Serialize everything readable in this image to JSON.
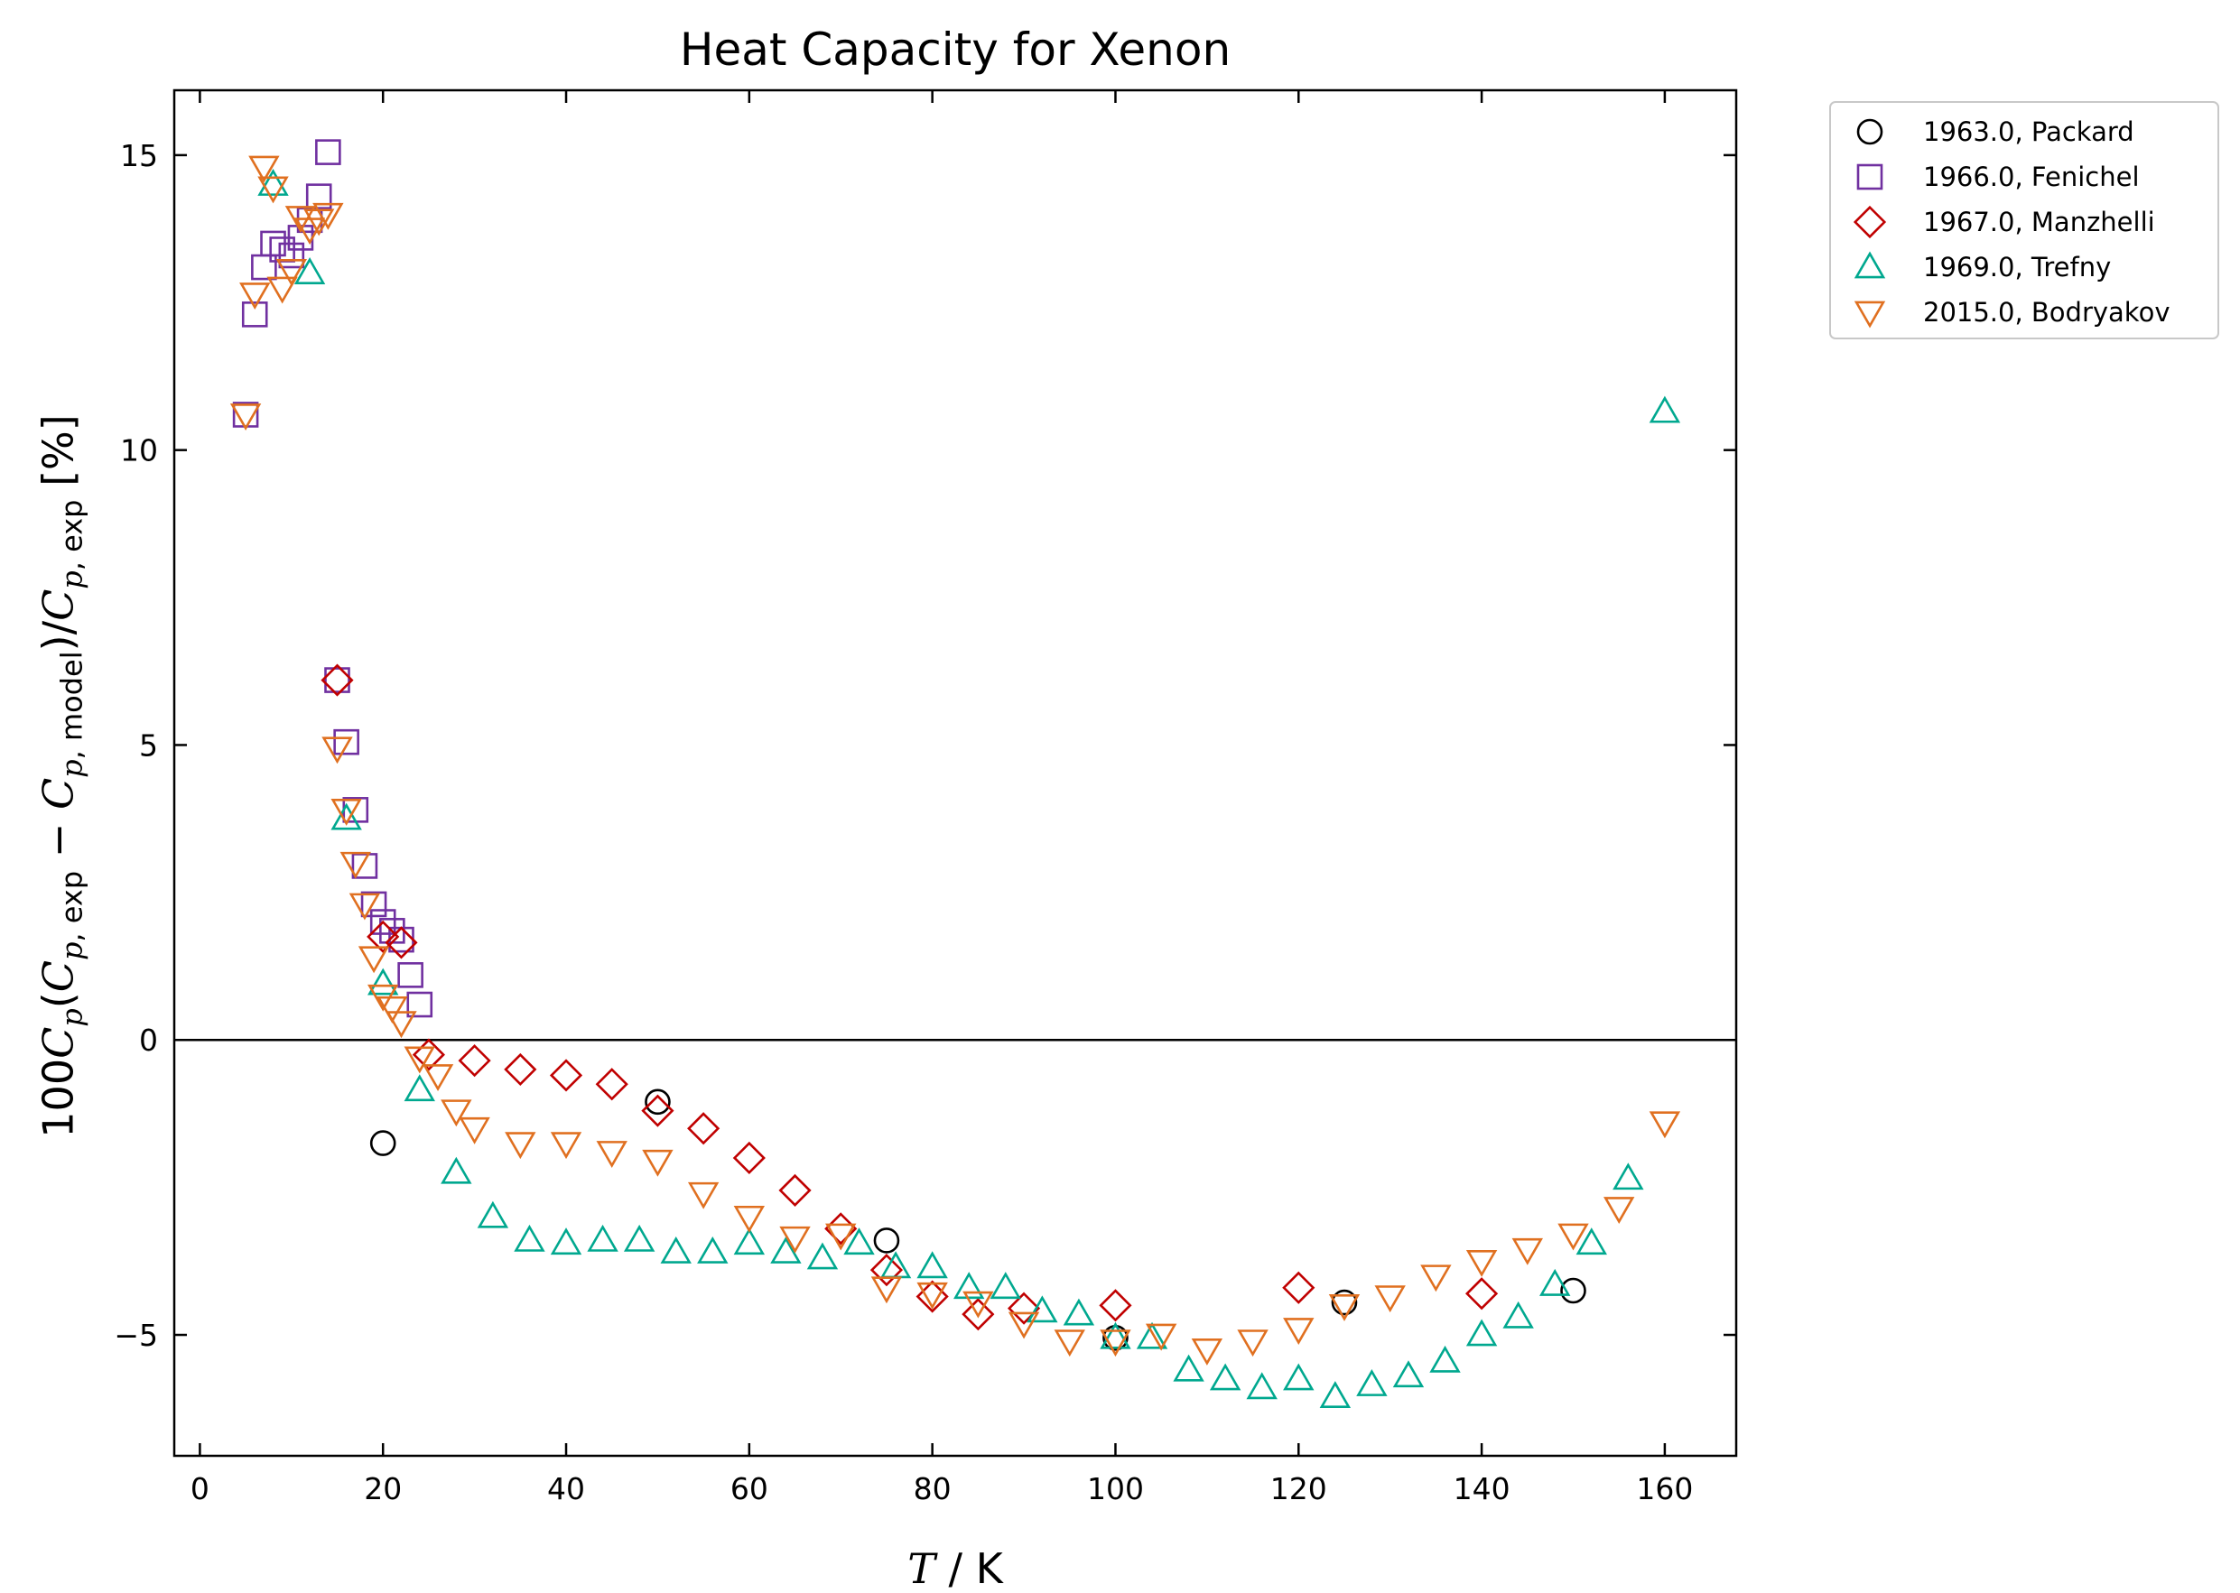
{
  "chart_data": {
    "type": "scatter",
    "title": "Heat Capacity for Xenon",
    "xlabel": "T / K",
    "ylabel": "100Cp(Cp,exp − Cp,model)/Cp,exp [%]",
    "xlim": [
      -2.8,
      167.8
    ],
    "ylim": [
      -7.05,
      16.1
    ],
    "xticks": [
      0,
      20,
      40,
      60,
      80,
      100,
      120,
      140,
      160
    ],
    "yticks": [
      -5,
      0,
      5,
      10,
      15
    ],
    "zero_line": true,
    "grid": false,
    "legend_position": "outside-top-right",
    "series": [
      {
        "name": "1963.0, Packard",
        "marker": "circle",
        "color": "#000000",
        "x": [
          20,
          50,
          75,
          100,
          125,
          150
        ],
        "y": [
          -1.75,
          -1.05,
          -3.4,
          -5.05,
          -4.45,
          -4.25
        ]
      },
      {
        "name": "1966.0, Fenichel",
        "marker": "square",
        "color": "#7030a0",
        "x": [
          5,
          6,
          7,
          8,
          9,
          10,
          11,
          12,
          13,
          14,
          15,
          16,
          17,
          18,
          19,
          20,
          21,
          22,
          23,
          24
        ],
        "y": [
          10.6,
          12.3,
          13.1,
          13.5,
          13.4,
          13.3,
          13.6,
          13.9,
          14.3,
          15.05,
          6.1,
          5.05,
          3.9,
          2.95,
          2.3,
          2.0,
          1.85,
          1.7,
          1.1,
          0.6
        ]
      },
      {
        "name": "1967.0, Manzhelli",
        "marker": "diamond",
        "color": "#c00000",
        "x": [
          15,
          20,
          22,
          25,
          30,
          35,
          40,
          45,
          50,
          55,
          60,
          65,
          70,
          75,
          80,
          85,
          90,
          100,
          120,
          140
        ],
        "y": [
          6.1,
          1.75,
          1.65,
          -0.25,
          -0.35,
          -0.5,
          -0.6,
          -0.75,
          -1.2,
          -1.5,
          -2.0,
          -2.55,
          -3.2,
          -3.9,
          -4.35,
          -4.65,
          -4.55,
          -4.5,
          -4.2,
          -4.3
        ]
      },
      {
        "name": "1969.0, Trefny",
        "marker": "triangle-up",
        "color": "#00a88f",
        "x": [
          8,
          12,
          16,
          20,
          24,
          28,
          32,
          36,
          40,
          44,
          48,
          52,
          56,
          60,
          64,
          68,
          72,
          76,
          80,
          84,
          88,
          92,
          96,
          100,
          104,
          108,
          112,
          116,
          120,
          124,
          128,
          132,
          136,
          140,
          144,
          148,
          152,
          156,
          160
        ],
        "y": [
          14.5,
          13.0,
          3.75,
          0.95,
          -0.85,
          -2.25,
          -3.0,
          -3.4,
          -3.45,
          -3.4,
          -3.4,
          -3.6,
          -3.6,
          -3.45,
          -3.6,
          -3.7,
          -3.45,
          -3.85,
          -3.85,
          -4.2,
          -4.2,
          -4.6,
          -4.65,
          -5.05,
          -5.05,
          -5.6,
          -5.75,
          -5.9,
          -5.75,
          -6.05,
          -5.85,
          -5.7,
          -5.45,
          -5.0,
          -4.7,
          -4.15,
          -3.45,
          -2.35,
          10.65
        ]
      },
      {
        "name": "2015.0, Bodryakov",
        "marker": "triangle-down",
        "color": "#e07020",
        "x": [
          5,
          6,
          7,
          8,
          9,
          10,
          11,
          12,
          13,
          14,
          15,
          16,
          17,
          18,
          19,
          20,
          21,
          22,
          24,
          26,
          28,
          30,
          35,
          40,
          45,
          50,
          55,
          60,
          65,
          70,
          75,
          80,
          85,
          90,
          95,
          100,
          105,
          110,
          115,
          120,
          125,
          130,
          135,
          140,
          145,
          150,
          155,
          160
        ],
        "y": [
          10.6,
          12.65,
          14.8,
          14.45,
          12.75,
          13.05,
          13.95,
          13.75,
          13.9,
          14.0,
          4.95,
          3.9,
          3.0,
          2.3,
          1.4,
          0.75,
          0.55,
          0.3,
          -0.3,
          -0.6,
          -1.2,
          -1.5,
          -1.75,
          -1.75,
          -1.9,
          -2.05,
          -2.6,
          -3.0,
          -3.35,
          -3.3,
          -4.2,
          -4.3,
          -4.45,
          -4.8,
          -5.1,
          -5.1,
          -5.0,
          -5.25,
          -5.1,
          -4.9,
          -4.5,
          -4.35,
          -4.0,
          -3.75,
          -3.55,
          -3.3,
          -2.85,
          -1.4
        ]
      }
    ]
  }
}
